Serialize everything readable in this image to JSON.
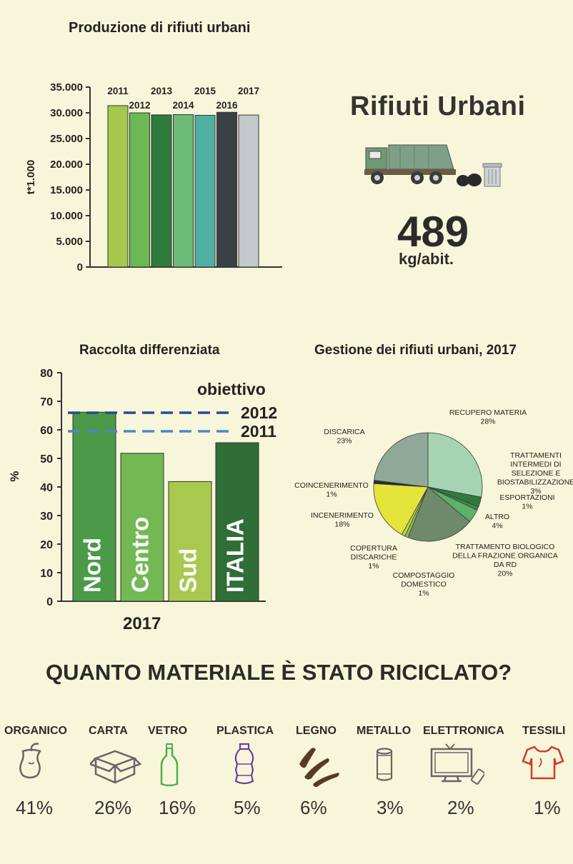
{
  "header": {
    "production_title": "Produzione di rifiuti urbani",
    "big_title": "Rifiuti Urbani",
    "per_capita_value": "489",
    "per_capita_unit": "kg/abit.",
    "separate_title": "Raccolta differenziata",
    "management_title": "Gestione dei rifiuti urbani, 2017",
    "separate_year": "2017",
    "recycle_question": "QUANTO MATERIALE È STATO RICICLATO?"
  },
  "colors": {
    "background": "#f8f6da"
  },
  "chart_data": [
    {
      "type": "bar",
      "title": "Produzione di rifiuti urbani",
      "ylabel": "t*1.000",
      "ylim": [
        0,
        35000
      ],
      "yticks": [
        "0",
        "5.000",
        "10.000",
        "15.000",
        "20.000",
        "25.000",
        "30.000",
        "35.000"
      ],
      "categories": [
        "2011",
        "2012",
        "2013",
        "2014",
        "2015",
        "2016",
        "2017"
      ],
      "values": [
        31400,
        29990,
        29600,
        29650,
        29520,
        30110,
        29570
      ],
      "colors": [
        "#a6c84e",
        "#6cb853",
        "#2f7a3d",
        "#6dbb78",
        "#4fb0a2",
        "#394147",
        "#c4c9cc"
      ]
    },
    {
      "type": "bar",
      "title": "Raccolta differenziata",
      "xlabel": "2017",
      "ylabel": "%",
      "ylim": [
        0,
        80
      ],
      "yticks": [
        "0",
        "10",
        "20",
        "30",
        "40",
        "50",
        "60",
        "70",
        "80"
      ],
      "categories": [
        "Nord",
        "Centro",
        "Sud",
        "ITALIA"
      ],
      "values": [
        66.2,
        51.8,
        41.9,
        55.5
      ],
      "colors": [
        "#4a9a47",
        "#72b954",
        "#a8c84f",
        "#2f6e37"
      ],
      "targets": {
        "heading": "obiettivo",
        "lines": [
          {
            "label": "2012",
            "value": 65,
            "color": "#2a4b8f"
          },
          {
            "label": "2011",
            "value": 60,
            "color": "#4d86c6"
          }
        ]
      }
    },
    {
      "type": "pie",
      "title": "Gestione dei rifiuti urbani, 2017",
      "slices": [
        {
          "label": "RECUPERO MATERIA",
          "pct": "28%",
          "value": 28,
          "color": "#a6d4b2"
        },
        {
          "label": "TRATTAMENTI INTERMEDI DI SELEZIONE E BIOSTABILIZZAZIONE",
          "pct": "3%",
          "value": 3,
          "color": "#2f7a3d"
        },
        {
          "label": "ESPORTAZIONI",
          "pct": "1%",
          "value": 1,
          "color": "#3f8f48"
        },
        {
          "label": "ALTRO",
          "pct": "4%",
          "value": 4,
          "color": "#5eb06a"
        },
        {
          "label": "TRATTAMENTO BIOLOGICO DELLA FRAZIONE ORGANICA DA RD",
          "pct": "20%",
          "value": 20,
          "color": "#6e8a6b"
        },
        {
          "label": "COMPOSTAGGIO DOMESTICO",
          "pct": "1%",
          "value": 1,
          "color": "#8fbc4f"
        },
        {
          "label": "COPERTURA DISCARICHE",
          "pct": "1%",
          "value": 1,
          "color": "#c5d64c"
        },
        {
          "label": "INCENERIMENTO",
          "pct": "18%",
          "value": 18,
          "color": "#e4e43a"
        },
        {
          "label": "COINCENERIMENTO",
          "pct": "1%",
          "value": 1,
          "color": "#2b2b2b"
        },
        {
          "label": "DISCARICA",
          "pct": "23%",
          "value": 23,
          "color": "#90a898"
        }
      ]
    }
  ],
  "materials": [
    {
      "label": "ORGANICO",
      "value": "41%",
      "icon": "apple-core-icon",
      "color": "#666666"
    },
    {
      "label": "CARTA",
      "value": "26%",
      "icon": "cardboard-box-icon",
      "color": "#666666"
    },
    {
      "label": "VETRO",
      "value": "16%",
      "icon": "glass-bottle-icon",
      "color": "#4caf50"
    },
    {
      "label": "PLASTICA",
      "value": "5%",
      "icon": "plastic-bottle-icon",
      "color": "#6a3fa0"
    },
    {
      "label": "LEGNO",
      "value": "6%",
      "icon": "wood-pieces-icon",
      "color": "#5a3a22"
    },
    {
      "label": "METALLO",
      "value": "3%",
      "icon": "metal-can-icon",
      "color": "#666666"
    },
    {
      "label": "ELETTRONICA",
      "value": "2%",
      "icon": "tv-phone-icon",
      "color": "#666666"
    },
    {
      "label": "TESSILI",
      "value": "1%",
      "icon": "tshirt-icon",
      "color": "#d23a2a"
    }
  ]
}
